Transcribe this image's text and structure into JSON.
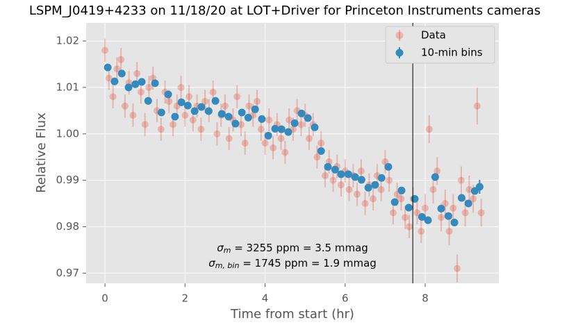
{
  "chart_data": {
    "type": "scatter",
    "title": "LSPM_J0419+4233 on 11/18/20 at LOT+Driver for Princeton Instruments cameras",
    "xlabel": "Time from start (hr)",
    "ylabel": "Relative Flux",
    "xlim": [
      -0.47,
      9.84
    ],
    "ylim": [
      0.9678,
      1.0239
    ],
    "xticks": [
      0,
      2,
      4,
      6,
      8
    ],
    "yticks": [
      0.97,
      0.98,
      0.99,
      {
        "value": 1.0,
        "label": "1.00"
      },
      1.01,
      1.02
    ],
    "grid": true,
    "legend": "upper right",
    "vline_x": 7.69,
    "annotations": [
      {
        "symbol": "σ",
        "subscript": "m",
        "text": " = 3255 ppm = 3.5 mmag"
      },
      {
        "symbol": "σ",
        "subscript": "m, bin",
        "text": " = 1745 ppm = 1.9 mmag"
      }
    ],
    "series": [
      {
        "name": "Data",
        "color": "#e24a33",
        "x": [
          0.0,
          0.1,
          0.2,
          0.3,
          0.4,
          0.5,
          0.6,
          0.7,
          0.8,
          0.9,
          1.0,
          1.1,
          1.2,
          1.3,
          1.4,
          1.5,
          1.6,
          1.7,
          1.8,
          1.9,
          2.0,
          2.1,
          2.2,
          2.3,
          2.4,
          2.5,
          2.6,
          2.7,
          2.8,
          2.9,
          3.0,
          3.1,
          3.2,
          3.3,
          3.4,
          3.5,
          3.6,
          3.7,
          3.8,
          3.9,
          4.0,
          4.1,
          4.2,
          4.3,
          4.4,
          4.5,
          4.6,
          4.7,
          4.8,
          4.9,
          5.0,
          5.1,
          5.2,
          5.3,
          5.4,
          5.5,
          5.6,
          5.7,
          5.8,
          5.9,
          6.0,
          6.1,
          6.2,
          6.3,
          6.4,
          6.5,
          6.6,
          6.7,
          6.8,
          6.9,
          7.0,
          7.1,
          7.2,
          7.3,
          7.4,
          7.5,
          7.6,
          7.7,
          7.8,
          7.9,
          8.0,
          8.1,
          8.2,
          8.3,
          8.4,
          8.5,
          8.6,
          8.7,
          8.8,
          8.9,
          9.0,
          9.1,
          9.2,
          9.3,
          9.4
        ],
        "values": [
          1.018,
          1.012,
          1.008,
          1.014,
          1.016,
          1.006,
          1.011,
          1.004,
          1.013,
          1.009,
          1.002,
          1.01,
          1.012,
          1.005,
          1.001,
          1.009,
          1.007,
          1.002,
          1.006,
          1.01,
          1.004,
          1.008,
          1.003,
          1.006,
          1.001,
          1.007,
          1.005,
          1.009,
          1.0,
          1.004,
          1.006,
          0.999,
          1.003,
          1.008,
          1.002,
          0.998,
          1.006,
          1.004,
          1.007,
          1.001,
          0.998,
          1.003,
          0.997,
          1.002,
          0.999,
          0.996,
          1.003,
          1.001,
          1.005,
          1.002,
          1.004,
          0.999,
          1.002,
          0.995,
          0.998,
          0.991,
          0.994,
          0.99,
          0.993,
          0.989,
          0.992,
          0.988,
          0.991,
          0.987,
          0.992,
          0.985,
          0.989,
          0.986,
          0.991,
          0.988,
          0.994,
          0.99,
          0.983,
          0.987,
          0.986,
          0.982,
          0.98,
          0.986,
          0.983,
          0.979,
          0.984,
          1.001,
          0.988,
          0.992,
          0.982,
          0.985,
          0.979,
          0.984,
          0.971,
          0.99,
          0.983,
          0.988,
          0.986,
          1.006,
          0.983
        ],
        "errors": [
          0.0025,
          0.0025,
          0.0025,
          0.0025,
          0.0025,
          0.0025,
          0.0025,
          0.0025,
          0.0025,
          0.0025,
          0.0025,
          0.0025,
          0.0025,
          0.0025,
          0.0025,
          0.0025,
          0.0025,
          0.0025,
          0.0025,
          0.0025,
          0.0025,
          0.0025,
          0.0025,
          0.0025,
          0.0025,
          0.0025,
          0.0025,
          0.0025,
          0.0025,
          0.0025,
          0.0025,
          0.0025,
          0.0025,
          0.0025,
          0.0025,
          0.0025,
          0.0025,
          0.0025,
          0.0025,
          0.0025,
          0.0025,
          0.0025,
          0.0025,
          0.0025,
          0.0025,
          0.0025,
          0.0025,
          0.0025,
          0.0025,
          0.0025,
          0.0025,
          0.0025,
          0.0025,
          0.0025,
          0.0025,
          0.0025,
          0.0025,
          0.0025,
          0.0025,
          0.0025,
          0.0025,
          0.0025,
          0.0025,
          0.0025,
          0.0025,
          0.0025,
          0.0025,
          0.0025,
          0.0025,
          0.0025,
          0.0025,
          0.0025,
          0.0025,
          0.0025,
          0.0025,
          0.0025,
          0.0025,
          0.0025,
          0.0025,
          0.0025,
          0.003,
          0.003,
          0.003,
          0.003,
          0.003,
          0.003,
          0.003,
          0.003,
          0.003,
          0.003,
          0.003,
          0.003,
          0.003,
          0.004,
          0.003
        ]
      },
      {
        "name": "10-min bins",
        "color": "#348abd",
        "x": [
          0.07,
          0.24,
          0.42,
          0.59,
          0.76,
          0.92,
          1.08,
          1.25,
          1.41,
          1.58,
          1.75,
          1.91,
          2.07,
          2.24,
          2.41,
          2.59,
          2.76,
          2.92,
          3.09,
          3.26,
          3.42,
          3.58,
          3.75,
          3.92,
          4.08,
          4.25,
          4.41,
          4.58,
          4.74,
          4.91,
          5.07,
          5.24,
          5.4,
          5.57,
          5.75,
          5.9,
          6.08,
          6.25,
          6.41,
          6.58,
          6.75,
          6.91,
          7.08,
          7.24,
          7.41,
          7.59,
          7.74,
          7.92,
          8.07,
          8.25,
          8.4,
          8.58,
          8.73,
          8.91,
          9.08,
          9.24,
          9.36
        ],
        "values": [
          1.0143,
          1.0113,
          1.013,
          1.01,
          1.0107,
          1.0112,
          1.0071,
          1.0109,
          1.0046,
          1.0085,
          1.0037,
          1.0068,
          1.0061,
          1.0049,
          1.0058,
          1.0049,
          1.0071,
          1.0043,
          1.0037,
          1.0022,
          1.0046,
          1.0035,
          1.0053,
          1.0032,
          0.9996,
          1.0011,
          1.001,
          1.0004,
          1.0023,
          1.0044,
          1.0034,
          1.0014,
          0.9963,
          0.9929,
          0.9923,
          0.9913,
          0.9913,
          0.9907,
          0.9901,
          0.9884,
          0.989,
          0.9905,
          0.9929,
          0.9853,
          0.9878,
          0.9841,
          0.986,
          0.9821,
          0.9814,
          0.9907,
          0.9839,
          0.9823,
          0.9809,
          0.9862,
          0.985,
          0.9877,
          0.9886
        ],
        "errors": [
          0.0005,
          0.0005,
          0.0005,
          0.0005,
          0.0005,
          0.0005,
          0.0005,
          0.0005,
          0.0005,
          0.0005,
          0.0005,
          0.0005,
          0.0005,
          0.0005,
          0.0005,
          0.0005,
          0.0005,
          0.0005,
          0.0005,
          0.0005,
          0.0005,
          0.0005,
          0.0005,
          0.0005,
          0.0005,
          0.0005,
          0.0005,
          0.0005,
          0.0005,
          0.0005,
          0.0005,
          0.0005,
          0.0005,
          0.0005,
          0.0005,
          0.0005,
          0.0005,
          0.0005,
          0.0005,
          0.0005,
          0.0005,
          0.0005,
          0.0005,
          0.0005,
          0.0005,
          0.0005,
          0.0005,
          0.0005,
          0.0005,
          0.0005,
          0.0005,
          0.0005,
          0.0005,
          0.0005,
          0.0005,
          0.0005,
          0.0015
        ]
      }
    ]
  }
}
